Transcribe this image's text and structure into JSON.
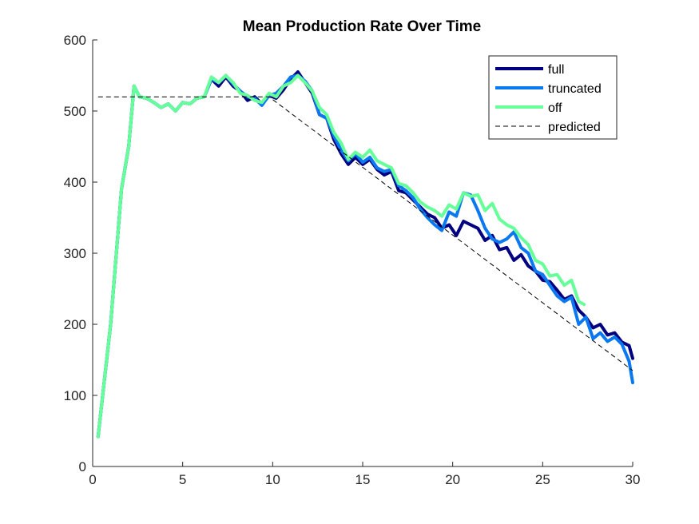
{
  "chart_data": {
    "type": "line",
    "title": "Mean Production Rate Over Time",
    "xlabel": "",
    "ylabel": "",
    "xlim": [
      0,
      30
    ],
    "ylim": [
      0,
      600
    ],
    "xticks": [
      0,
      5,
      10,
      15,
      20,
      25,
      30
    ],
    "yticks": [
      0,
      100,
      200,
      300,
      400,
      500,
      600
    ],
    "xtick_labels": [
      "0",
      "5",
      "10",
      "15",
      "20",
      "25",
      "30"
    ],
    "ytick_labels": [
      "0",
      "100",
      "200",
      "300",
      "400",
      "500",
      "600"
    ],
    "grid": false,
    "legend_position": "top-right",
    "series": [
      {
        "name": "full",
        "color": "#000080",
        "x": [
          0.3,
          1.0,
          1.6,
          2.0,
          2.3,
          2.6,
          3.0,
          3.4,
          3.8,
          4.2,
          4.6,
          5.0,
          5.4,
          5.8,
          6.2,
          6.6,
          7.0,
          7.4,
          7.8,
          8.2,
          8.6,
          9.0,
          9.4,
          9.8,
          10.2,
          10.6,
          11.0,
          11.4,
          11.8,
          12.2,
          12.6,
          13.0,
          13.4,
          13.8,
          14.2,
          14.6,
          15.0,
          15.4,
          15.8,
          16.2,
          16.6,
          17.0,
          17.4,
          17.8,
          18.2,
          18.6,
          19.0,
          19.4,
          19.8,
          20.2,
          20.6,
          21.0,
          21.4,
          21.8,
          22.2,
          22.6,
          23.0,
          23.4,
          23.8,
          24.2,
          24.6,
          25.0,
          25.4,
          25.8,
          26.2,
          26.6,
          27.0,
          27.4,
          27.8,
          28.2,
          28.6,
          29.0,
          29.4,
          29.8,
          30.0
        ],
        "y": [
          42,
          200,
          390,
          450,
          535,
          520,
          518,
          512,
          505,
          510,
          500,
          512,
          510,
          518,
          520,
          545,
          535,
          548,
          535,
          528,
          515,
          520,
          510,
          522,
          518,
          530,
          545,
          555,
          540,
          525,
          495,
          490,
          460,
          440,
          425,
          435,
          425,
          432,
          418,
          410,
          415,
          388,
          385,
          375,
          365,
          355,
          350,
          335,
          340,
          325,
          345,
          340,
          335,
          318,
          325,
          305,
          308,
          290,
          298,
          282,
          275,
          262,
          260,
          248,
          235,
          240,
          220,
          210,
          195,
          200,
          185,
          188,
          175,
          170,
          152
        ]
      },
      {
        "name": "truncated",
        "color": "#0a78f0",
        "x": [
          0.3,
          1.0,
          1.6,
          2.0,
          2.3,
          2.6,
          3.0,
          3.4,
          3.8,
          4.2,
          4.6,
          5.0,
          5.4,
          5.8,
          6.2,
          6.6,
          7.0,
          7.4,
          7.8,
          8.2,
          8.6,
          9.0,
          9.4,
          9.8,
          10.2,
          10.6,
          11.0,
          11.4,
          11.8,
          12.2,
          12.6,
          13.0,
          13.4,
          13.8,
          14.2,
          14.6,
          15.0,
          15.4,
          15.8,
          16.2,
          16.6,
          17.0,
          17.4,
          17.8,
          18.2,
          18.6,
          19.0,
          19.4,
          19.8,
          20.2,
          20.6,
          21.0,
          21.4,
          21.8,
          22.2,
          22.6,
          23.0,
          23.4,
          23.8,
          24.2,
          24.6,
          25.0,
          25.4,
          25.8,
          26.2,
          26.6,
          27.0,
          27.4,
          27.8,
          28.2,
          28.6,
          29.0,
          29.4,
          29.8,
          30.0
        ],
        "y": [
          42,
          200,
          390,
          450,
          535,
          520,
          518,
          512,
          505,
          510,
          500,
          512,
          510,
          518,
          520,
          545,
          540,
          550,
          538,
          528,
          520,
          518,
          508,
          522,
          525,
          535,
          548,
          550,
          542,
          528,
          495,
          490,
          465,
          445,
          430,
          440,
          428,
          435,
          420,
          415,
          418,
          395,
          388,
          378,
          362,
          350,
          340,
          332,
          358,
          352,
          385,
          382,
          360,
          335,
          320,
          315,
          320,
          330,
          308,
          300,
          275,
          270,
          255,
          240,
          232,
          238,
          200,
          210,
          180,
          188,
          176,
          182,
          172,
          148,
          118
        ]
      },
      {
        "name": "off",
        "color": "#66ff99",
        "x": [
          0.3,
          1.0,
          1.6,
          2.0,
          2.3,
          2.6,
          3.0,
          3.4,
          3.8,
          4.2,
          4.6,
          5.0,
          5.4,
          5.8,
          6.2,
          6.6,
          7.0,
          7.4,
          7.8,
          8.2,
          8.6,
          9.0,
          9.4,
          9.8,
          10.2,
          10.6,
          11.0,
          11.4,
          11.8,
          12.2,
          12.6,
          13.0,
          13.4,
          13.8,
          14.2,
          14.6,
          15.0,
          15.4,
          15.8,
          16.2,
          16.6,
          17.0,
          17.4,
          17.8,
          18.2,
          18.6,
          19.0,
          19.4,
          19.8,
          20.2,
          20.6,
          21.0,
          21.4,
          21.8,
          22.2,
          22.6,
          23.0,
          23.4,
          23.8,
          24.2,
          24.6,
          25.0,
          25.4,
          25.8,
          26.2,
          26.6,
          27.0,
          27.3
        ],
        "y": [
          42,
          200,
          390,
          450,
          535,
          520,
          518,
          512,
          505,
          510,
          500,
          512,
          510,
          518,
          520,
          548,
          540,
          550,
          540,
          525,
          522,
          515,
          512,
          525,
          520,
          535,
          540,
          550,
          540,
          528,
          505,
          495,
          470,
          455,
          432,
          442,
          435,
          445,
          430,
          425,
          420,
          398,
          395,
          385,
          372,
          365,
          360,
          352,
          368,
          362,
          385,
          380,
          382,
          360,
          370,
          348,
          340,
          335,
          322,
          312,
          290,
          285,
          268,
          270,
          255,
          262,
          232,
          228
        ]
      }
    ],
    "reference_line": {
      "name": "predicted",
      "color": "#000000",
      "style": "dashed",
      "x": [
        0.3,
        9.8,
        30.0
      ],
      "y": [
        520,
        520,
        135
      ]
    }
  }
}
